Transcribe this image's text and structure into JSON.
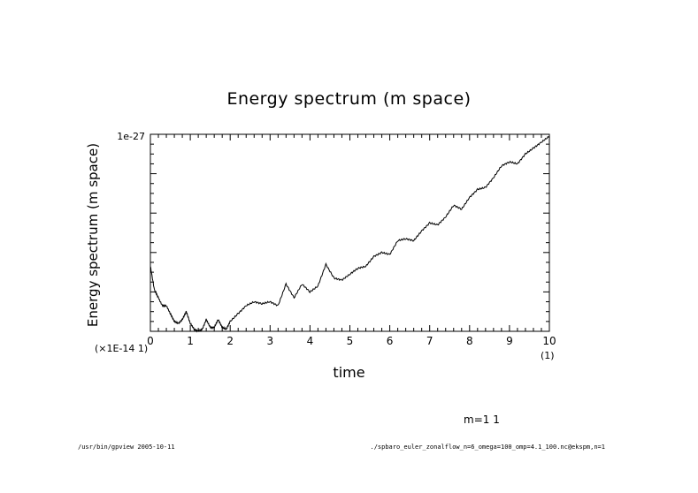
{
  "chart_data": {
    "type": "line",
    "title": "Energy spectrum (m space)",
    "xlabel": "time",
    "ylabel": "Energy spectrum (m space)",
    "x_multiplier_label": "(1)",
    "y_multiplier_label": "(×1E-14 1)",
    "xlim": [
      0,
      10
    ],
    "ylim": [
      0,
      1
    ],
    "x_ticks": [
      0,
      1,
      2,
      3,
      4,
      5,
      6,
      7,
      8,
      9,
      10
    ],
    "y_tick_labels": [
      "1e-27"
    ],
    "grid": false,
    "series": [
      {
        "legend_label": "m=1 1",
        "x": [
          0,
          0.1,
          0.2,
          0.3,
          0.4,
          0.5,
          0.6,
          0.7,
          0.8,
          0.9,
          1.0,
          1.1,
          1.2,
          1.3,
          1.4,
          1.5,
          1.6,
          1.7,
          1.8,
          1.9,
          2.0,
          2.2,
          2.4,
          2.6,
          2.8,
          3.0,
          3.2,
          3.4,
          3.6,
          3.8,
          4.0,
          4.2,
          4.4,
          4.6,
          4.8,
          5.0,
          5.2,
          5.4,
          5.6,
          5.8,
          6.0,
          6.2,
          6.4,
          6.6,
          6.8,
          7.0,
          7.2,
          7.4,
          7.6,
          7.8,
          8.0,
          8.2,
          8.4,
          8.6,
          8.8,
          9.0,
          9.2,
          9.4,
          9.6,
          9.8,
          10.0
        ],
        "y": [
          0.33,
          0.21,
          0.17,
          0.13,
          0.13,
          0.09,
          0.05,
          0.04,
          0.06,
          0.1,
          0.04,
          0.01,
          0.0,
          0.01,
          0.06,
          0.02,
          0.02,
          0.06,
          0.02,
          0.01,
          0.05,
          0.09,
          0.13,
          0.15,
          0.14,
          0.15,
          0.13,
          0.24,
          0.17,
          0.24,
          0.2,
          0.23,
          0.34,
          0.27,
          0.26,
          0.29,
          0.32,
          0.33,
          0.38,
          0.4,
          0.39,
          0.46,
          0.47,
          0.46,
          0.51,
          0.55,
          0.54,
          0.58,
          0.64,
          0.62,
          0.68,
          0.72,
          0.73,
          0.78,
          0.84,
          0.86,
          0.85,
          0.9,
          0.93,
          0.96,
          0.99
        ]
      }
    ]
  },
  "footer": {
    "left": "/usr/bin/gpview  2005-10-11",
    "right": "./spbaro_euler_zonalflow_n=6_omega=100_omp=4.1_100.nc@ekspm,n=1"
  }
}
